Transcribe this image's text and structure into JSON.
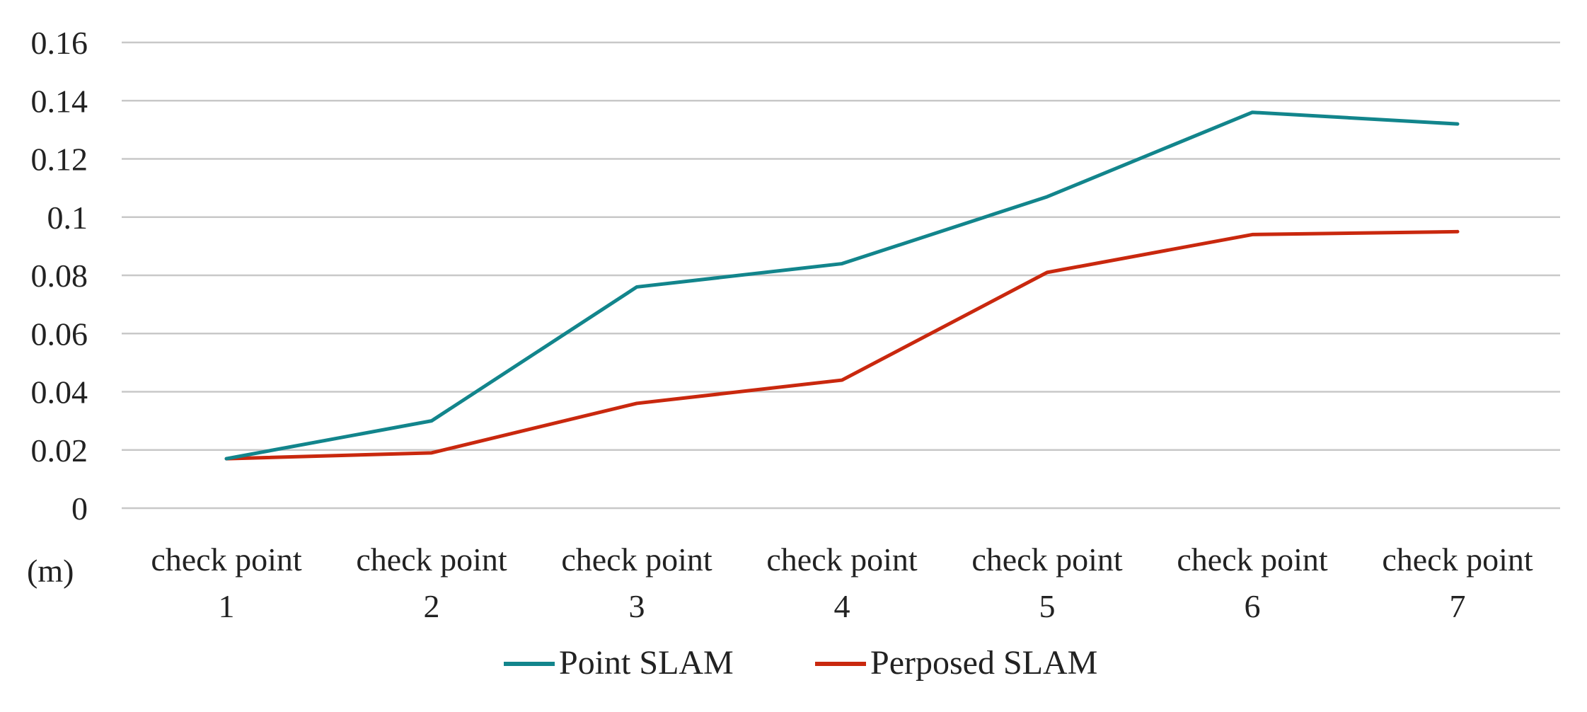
{
  "chart_data": {
    "type": "line",
    "categories": [
      [
        "check point",
        "1"
      ],
      [
        "check point",
        "2"
      ],
      [
        "check point",
        "3"
      ],
      [
        "check point",
        "4"
      ],
      [
        "check point",
        "5"
      ],
      [
        "check point",
        "6"
      ],
      [
        "check point",
        "7"
      ]
    ],
    "series": [
      {
        "name": "Point SLAM",
        "color": "#12858c",
        "values": [
          0.017,
          0.03,
          0.076,
          0.084,
          0.107,
          0.136,
          0.132
        ]
      },
      {
        "name": "Perposed SLAM",
        "color": "#c9280e",
        "values": [
          0.017,
          0.019,
          0.036,
          0.044,
          0.081,
          0.094,
          0.095
        ]
      }
    ],
    "yticks": [
      "0",
      "0.02",
      "0.04",
      "0.06",
      "0.08",
      "0.1",
      "0.12",
      "0.14",
      "0.16"
    ],
    "ylim": [
      0,
      0.16
    ],
    "ylabel": "(m)",
    "xlabel": "",
    "title": "",
    "grid": true,
    "legend_position": "bottom"
  }
}
